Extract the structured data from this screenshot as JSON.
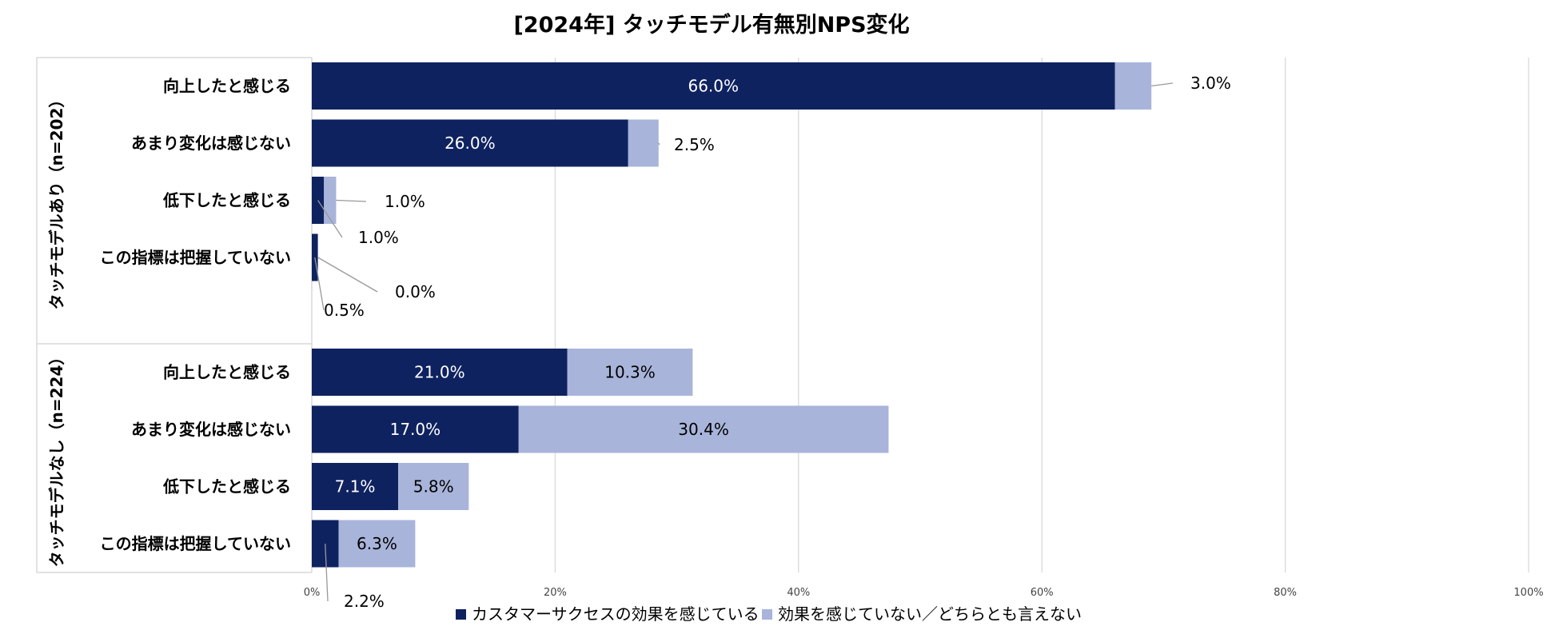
{
  "chart_data": {
    "type": "bar",
    "orientation": "horizontal",
    "stacked": true,
    "title": "[2024年] タッチモデル有無別NPS変化",
    "xlim": [
      0,
      100
    ],
    "x_ticks": [
      "0%",
      "20%",
      "40%",
      "60%",
      "80%",
      "100%"
    ],
    "grid": true,
    "legend_position": "bottom",
    "colors": {
      "series1": "#0f2260",
      "series2": "#a8b4da",
      "axis": "#d9d9d9"
    },
    "series": [
      {
        "name": "カスタマーサクセスの効果を感じている"
      },
      {
        "name": "効果を感じていない／どちらとも言えない"
      }
    ],
    "groups": [
      {
        "label": "タッチモデルあり（n=202）",
        "categories": [
          {
            "label": "向上したと感じる",
            "values": [
              66.0,
              3.0
            ],
            "value_labels": [
              "66.0%",
              "3.0%"
            ]
          },
          {
            "label": "あまり変化は感じない",
            "values": [
              26.0,
              2.5
            ],
            "value_labels": [
              "26.0%",
              "2.5%"
            ]
          },
          {
            "label": "低下したと感じる",
            "values": [
              1.0,
              1.0
            ],
            "value_labels": [
              "1.0%",
              "1.0%"
            ]
          },
          {
            "label": "この指標は把握していない",
            "values": [
              0.5,
              0.0
            ],
            "value_labels": [
              "0.5%",
              "0.0%"
            ]
          }
        ]
      },
      {
        "label": "タッチモデルなし（n=224）",
        "categories": [
          {
            "label": "向上したと感じる",
            "values": [
              21.0,
              10.3
            ],
            "value_labels": [
              "21.0%",
              "10.3%"
            ]
          },
          {
            "label": "あまり変化は感じない",
            "values": [
              17.0,
              30.4
            ],
            "value_labels": [
              "17.0%",
              "30.4%"
            ]
          },
          {
            "label": "低下したと感じる",
            "values": [
              7.1,
              5.8
            ],
            "value_labels": [
              "7.1%",
              "5.8%"
            ]
          },
          {
            "label": "この指標は把握していない",
            "values": [
              2.2,
              6.3
            ],
            "value_labels": [
              "2.2%",
              "6.3%"
            ]
          }
        ]
      }
    ]
  }
}
